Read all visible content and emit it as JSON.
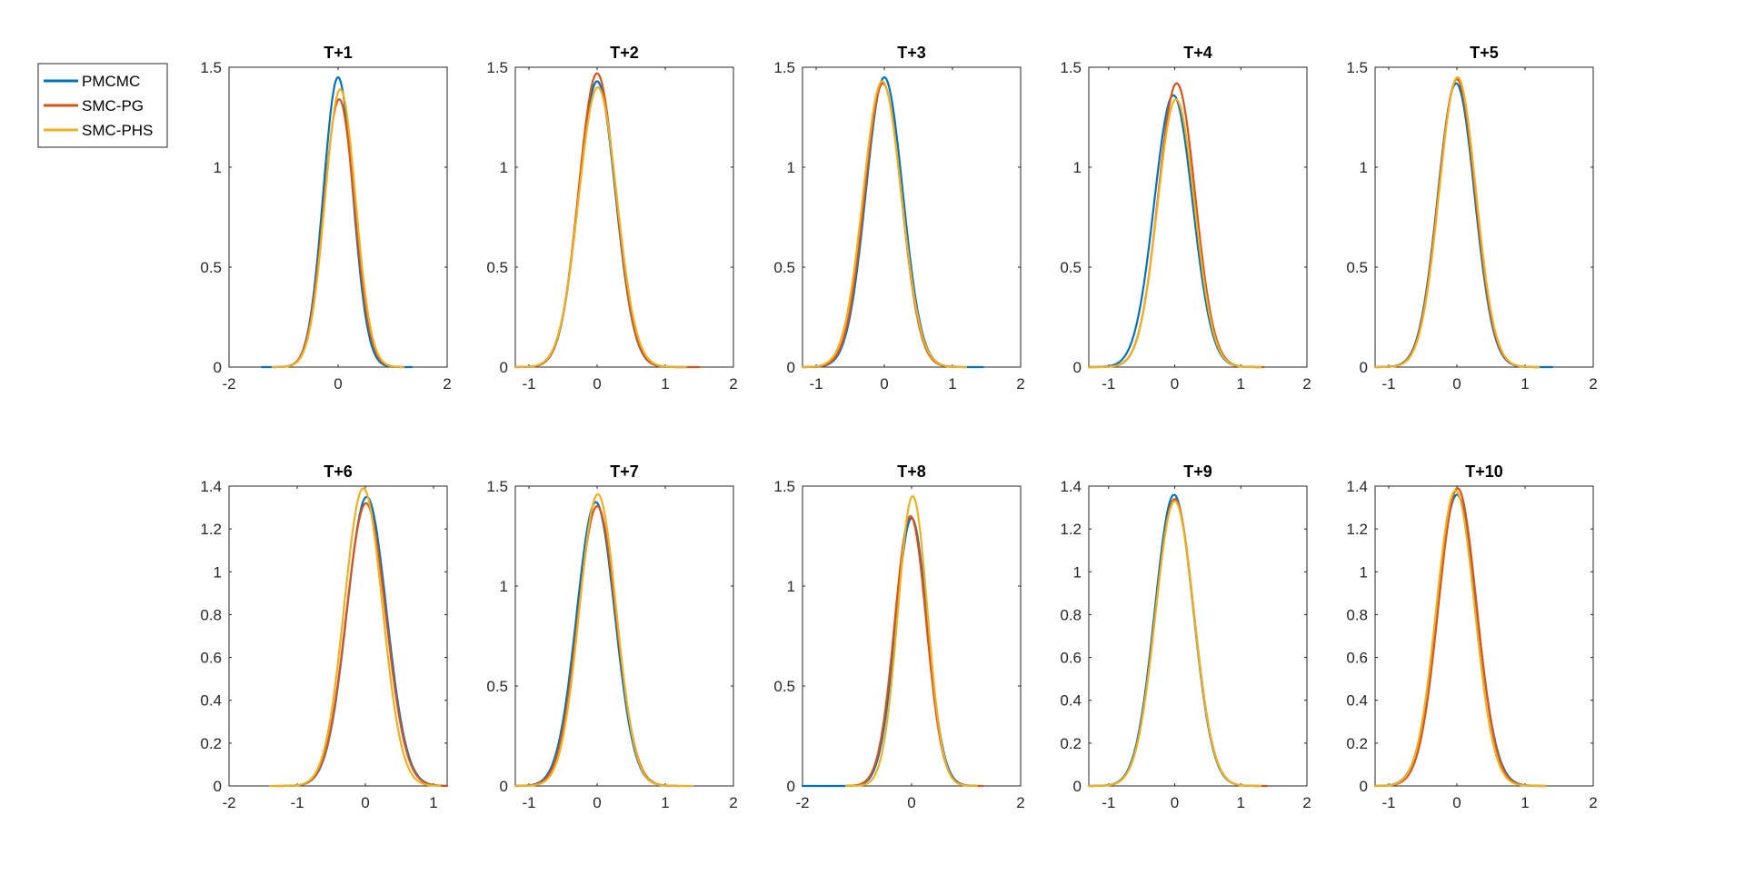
{
  "legend": {
    "placement": "outside-top-left",
    "entries": [
      {
        "name": "PMCMC",
        "color": "#0072BD"
      },
      {
        "name": "SMC-PG",
        "color": "#D95319"
      },
      {
        "name": "SMC-PHS",
        "color": "#EDB120"
      }
    ]
  },
  "chart_data": [
    {
      "type": "line",
      "title": "T+1",
      "xlim": [
        -2,
        2
      ],
      "ylim": [
        0,
        1.5
      ],
      "xticks": [
        -2,
        0,
        2
      ],
      "yticks": [
        0,
        0.5,
        1,
        1.5
      ],
      "xtick_labels": [
        "-2",
        "0",
        "2"
      ],
      "ytick_labels": [
        "0",
        "0.5",
        "1",
        "1.5"
      ],
      "grid": false,
      "series": [
        {
          "name": "PMCMC",
          "color": "#0072BD",
          "mean": 0.0,
          "sd": 0.27,
          "peak": 1.45,
          "range": [
            -1.4,
            1.35
          ]
        },
        {
          "name": "SMC-PG",
          "color": "#D95319",
          "mean": 0.02,
          "sd": 0.28,
          "peak": 1.34,
          "range": [
            -1.1,
            1.2
          ]
        },
        {
          "name": "SMC-PHS",
          "color": "#EDB120",
          "mean": 0.04,
          "sd": 0.28,
          "peak": 1.39,
          "range": [
            -1.2,
            1.2
          ]
        }
      ]
    },
    {
      "type": "line",
      "title": "T+2",
      "xlim": [
        -1.2,
        2
      ],
      "ylim": [
        0,
        1.5
      ],
      "xticks": [
        -1,
        0,
        1,
        2
      ],
      "yticks": [
        0,
        0.5,
        1,
        1.5
      ],
      "xtick_labels": [
        "-1",
        "0",
        "1",
        "2"
      ],
      "ytick_labels": [
        "0",
        "0.5",
        "1",
        "1.5"
      ],
      "grid": false,
      "series": [
        {
          "name": "PMCMC",
          "color": "#0072BD",
          "mean": 0.0,
          "sd": 0.27,
          "peak": 1.43,
          "range": [
            -1.2,
            1.3
          ]
        },
        {
          "name": "SMC-PG",
          "color": "#D95319",
          "mean": 0.0,
          "sd": 0.27,
          "peak": 1.47,
          "range": [
            -1.2,
            1.5
          ]
        },
        {
          "name": "SMC-PHS",
          "color": "#EDB120",
          "mean": 0.01,
          "sd": 0.28,
          "peak": 1.4,
          "range": [
            -1.2,
            1.3
          ]
        }
      ]
    },
    {
      "type": "line",
      "title": "T+3",
      "xlim": [
        -1.2,
        2
      ],
      "ylim": [
        0,
        1.5
      ],
      "xticks": [
        -1,
        0,
        1,
        2
      ],
      "yticks": [
        0,
        0.5,
        1,
        1.5
      ],
      "xtick_labels": [
        "-1",
        "0",
        "1",
        "2"
      ],
      "ytick_labels": [
        "0",
        "0.5",
        "1",
        "1.5"
      ],
      "grid": false,
      "series": [
        {
          "name": "PMCMC",
          "color": "#0072BD",
          "mean": 0.0,
          "sd": 0.27,
          "peak": 1.45,
          "range": [
            -1.2,
            1.45
          ]
        },
        {
          "name": "SMC-PG",
          "color": "#D95319",
          "mean": -0.02,
          "sd": 0.27,
          "peak": 1.42,
          "range": [
            -1.2,
            1.1
          ]
        },
        {
          "name": "SMC-PHS",
          "color": "#EDB120",
          "mean": -0.03,
          "sd": 0.28,
          "peak": 1.43,
          "range": [
            -1.2,
            1.2
          ]
        }
      ]
    },
    {
      "type": "line",
      "title": "T+4",
      "xlim": [
        -1.3,
        2
      ],
      "ylim": [
        0,
        1.5
      ],
      "xticks": [
        -1,
        0,
        1,
        2
      ],
      "yticks": [
        0,
        0.5,
        1,
        1.5
      ],
      "xtick_labels": [
        "-1",
        "0",
        "1",
        "2"
      ],
      "ytick_labels": [
        "0",
        "0.5",
        "1",
        "1.5"
      ],
      "grid": false,
      "series": [
        {
          "name": "PMCMC",
          "color": "#0072BD",
          "mean": -0.02,
          "sd": 0.29,
          "peak": 1.36,
          "range": [
            -1.3,
            1.3
          ]
        },
        {
          "name": "SMC-PG",
          "color": "#D95319",
          "mean": 0.03,
          "sd": 0.28,
          "peak": 1.42,
          "range": [
            -1.3,
            1.35
          ]
        },
        {
          "name": "SMC-PHS",
          "color": "#EDB120",
          "mean": 0.02,
          "sd": 0.28,
          "peak": 1.34,
          "range": [
            -1.3,
            1.3
          ]
        }
      ]
    },
    {
      "type": "line",
      "title": "T+5",
      "xlim": [
        -1.2,
        2
      ],
      "ylim": [
        0,
        1.5
      ],
      "xticks": [
        -1,
        0,
        1,
        2
      ],
      "yticks": [
        0,
        0.5,
        1,
        1.5
      ],
      "xtick_labels": [
        "-1",
        "0",
        "1",
        "2"
      ],
      "ytick_labels": [
        "0",
        "0.5",
        "1",
        "1.5"
      ],
      "grid": false,
      "series": [
        {
          "name": "PMCMC",
          "color": "#0072BD",
          "mean": -0.01,
          "sd": 0.27,
          "peak": 1.42,
          "range": [
            -1.2,
            1.4
          ]
        },
        {
          "name": "SMC-PG",
          "color": "#D95319",
          "mean": 0.0,
          "sd": 0.27,
          "peak": 1.44,
          "range": [
            -1.2,
            1.2
          ]
        },
        {
          "name": "SMC-PHS",
          "color": "#EDB120",
          "mean": 0.01,
          "sd": 0.27,
          "peak": 1.45,
          "range": [
            -1.2,
            1.2
          ]
        }
      ]
    },
    {
      "type": "line",
      "title": "T+6",
      "xlim": [
        -2,
        1.2
      ],
      "ylim": [
        0,
        1.4
      ],
      "xticks": [
        -2,
        -1,
        0,
        1
      ],
      "yticks": [
        0,
        0.2,
        0.4,
        0.6,
        0.8,
        1,
        1.2,
        1.4
      ],
      "xtick_labels": [
        "-2",
        "-1",
        "0",
        "1"
      ],
      "ytick_labels": [
        "0",
        "0.2",
        "0.4",
        "0.6",
        "0.8",
        "1",
        "1.2",
        "1.4"
      ],
      "grid": false,
      "series": [
        {
          "name": "PMCMC",
          "color": "#0072BD",
          "mean": 0.02,
          "sd": 0.29,
          "peak": 1.35,
          "range": [
            -1.2,
            1.2
          ]
        },
        {
          "name": "SMC-PG",
          "color": "#D95319",
          "mean": 0.01,
          "sd": 0.29,
          "peak": 1.32,
          "range": [
            -1.3,
            1.2
          ]
        },
        {
          "name": "SMC-PHS",
          "color": "#EDB120",
          "mean": -0.03,
          "sd": 0.28,
          "peak": 1.39,
          "range": [
            -1.4,
            1.1
          ]
        }
      ]
    },
    {
      "type": "line",
      "title": "T+7",
      "xlim": [
        -1.2,
        2
      ],
      "ylim": [
        0,
        1.5
      ],
      "xticks": [
        -1,
        0,
        1,
        2
      ],
      "yticks": [
        0,
        0.5,
        1,
        1.5
      ],
      "xtick_labels": [
        "-1",
        "0",
        "1",
        "2"
      ],
      "ytick_labels": [
        "0",
        "0.5",
        "1",
        "1.5"
      ],
      "grid": false,
      "series": [
        {
          "name": "PMCMC",
          "color": "#0072BD",
          "mean": -0.02,
          "sd": 0.28,
          "peak": 1.42,
          "range": [
            -1.2,
            1.2
          ]
        },
        {
          "name": "SMC-PG",
          "color": "#D95319",
          "mean": 0.0,
          "sd": 0.28,
          "peak": 1.4,
          "range": [
            -1.2,
            1.2
          ]
        },
        {
          "name": "SMC-PHS",
          "color": "#EDB120",
          "mean": 0.01,
          "sd": 0.27,
          "peak": 1.46,
          "range": [
            -1.2,
            1.4
          ]
        }
      ]
    },
    {
      "type": "line",
      "title": "T+8",
      "xlim": [
        -2,
        2
      ],
      "ylim": [
        0,
        1.5
      ],
      "xticks": [
        -2,
        0,
        2
      ],
      "yticks": [
        0,
        0.5,
        1,
        1.5
      ],
      "xtick_labels": [
        "-2",
        "0",
        "2"
      ],
      "ytick_labels": [
        "0",
        "0.5",
        "1",
        "1.5"
      ],
      "grid": false,
      "series": [
        {
          "name": "PMCMC",
          "color": "#0072BD",
          "mean": 0.0,
          "sd": 0.29,
          "peak": 1.34,
          "range": [
            -2.0,
            1.2
          ]
        },
        {
          "name": "SMC-PG",
          "color": "#D95319",
          "mean": -0.02,
          "sd": 0.29,
          "peak": 1.35,
          "range": [
            -1.2,
            1.3
          ]
        },
        {
          "name": "SMC-PHS",
          "color": "#EDB120",
          "mean": 0.02,
          "sd": 0.27,
          "peak": 1.45,
          "range": [
            -1.2,
            1.2
          ]
        }
      ]
    },
    {
      "type": "line",
      "title": "T+9",
      "xlim": [
        -1.3,
        2
      ],
      "ylim": [
        0,
        1.4
      ],
      "xticks": [
        -1,
        0,
        1,
        2
      ],
      "yticks": [
        0,
        0.2,
        0.4,
        0.6,
        0.8,
        1,
        1.2,
        1.4
      ],
      "xtick_labels": [
        "-1",
        "0",
        "1",
        "2"
      ],
      "ytick_labels": [
        "0",
        "0.2",
        "0.4",
        "0.6",
        "0.8",
        "1",
        "1.2",
        "1.4"
      ],
      "grid": false,
      "series": [
        {
          "name": "PMCMC",
          "color": "#0072BD",
          "mean": -0.01,
          "sd": 0.29,
          "peak": 1.36,
          "range": [
            -1.3,
            1.3
          ]
        },
        {
          "name": "SMC-PG",
          "color": "#D95319",
          "mean": 0.0,
          "sd": 0.29,
          "peak": 1.34,
          "range": [
            -1.3,
            1.4
          ]
        },
        {
          "name": "SMC-PHS",
          "color": "#EDB120",
          "mean": 0.0,
          "sd": 0.29,
          "peak": 1.33,
          "range": [
            -1.3,
            1.3
          ]
        }
      ]
    },
    {
      "type": "line",
      "title": "T+10",
      "xlim": [
        -1.2,
        2
      ],
      "ylim": [
        0,
        1.4
      ],
      "xticks": [
        -1,
        0,
        1,
        2
      ],
      "yticks": [
        0,
        0.2,
        0.4,
        0.6,
        0.8,
        1,
        1.2,
        1.4
      ],
      "xtick_labels": [
        "-1",
        "0",
        "1",
        "2"
      ],
      "ytick_labels": [
        "0",
        "0.2",
        "0.4",
        "0.6",
        "0.8",
        "1",
        "1.2",
        "1.4"
      ],
      "grid": false,
      "series": [
        {
          "name": "PMCMC",
          "color": "#0072BD",
          "mean": 0.0,
          "sd": 0.29,
          "peak": 1.36,
          "range": [
            -1.2,
            1.3
          ]
        },
        {
          "name": "SMC-PG",
          "color": "#D95319",
          "mean": 0.01,
          "sd": 0.28,
          "peak": 1.39,
          "range": [
            -1.2,
            1.3
          ]
        },
        {
          "name": "SMC-PHS",
          "color": "#EDB120",
          "mean": -0.02,
          "sd": 0.28,
          "peak": 1.38,
          "range": [
            -1.2,
            1.3
          ]
        }
      ]
    }
  ]
}
